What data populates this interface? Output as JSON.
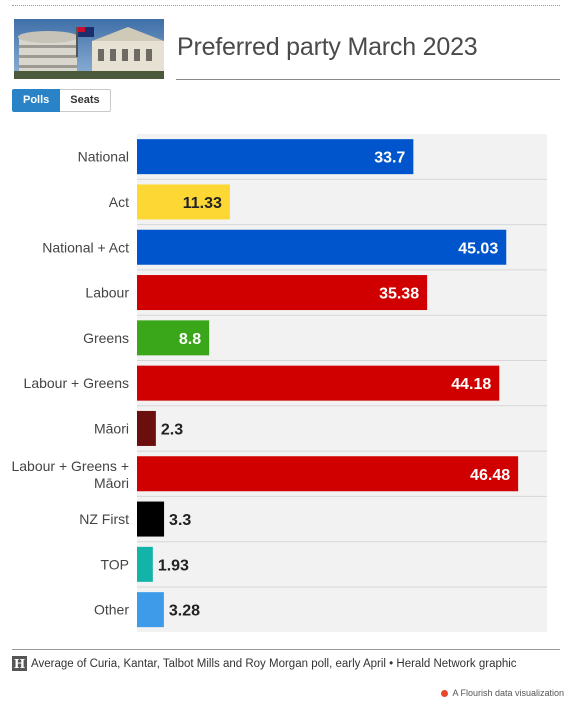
{
  "header": {
    "title": "Preferred party March 2023",
    "image_icon": "parliament-buildings-photo"
  },
  "tabs": [
    {
      "label": "Polls",
      "active": true
    },
    {
      "label": "Seats",
      "active": false
    }
  ],
  "chart_data": {
    "type": "bar",
    "orientation": "horizontal",
    "title": "Preferred party March 2023",
    "categories": [
      "National",
      "Act",
      "National + Act",
      "Labour",
      "Greens",
      "Labour + Greens",
      "Māori",
      "Labour + Greens + Māori",
      "NZ First",
      "TOP",
      "Other"
    ],
    "values": [
      33.7,
      11.33,
      45.03,
      35.38,
      8.8,
      44.18,
      2.3,
      46.48,
      3.3,
      1.93,
      3.28
    ],
    "labels": [
      "33.7",
      "11.33",
      "45.03",
      "35.38",
      "8.8",
      "44.18",
      "2.3",
      "46.48",
      "3.3",
      "1.93",
      "3.28"
    ],
    "colors": [
      "#0055cc",
      "#fdd835",
      "#0055cc",
      "#d10000",
      "#3aa619",
      "#d10000",
      "#6b0e0e",
      "#d10000",
      "#000000",
      "#12b3a8",
      "#3d9be9"
    ],
    "xlim": [
      0,
      50
    ],
    "xlabel": "",
    "ylabel": "",
    "grid": false,
    "legend": "none"
  },
  "footer": {
    "logo_letter": "H",
    "source": "Average of Curia, Kantar, Talbot Mills and Roy Morgan poll, early April • Herald Network graphic",
    "credit": "A Flourish data visualization"
  }
}
